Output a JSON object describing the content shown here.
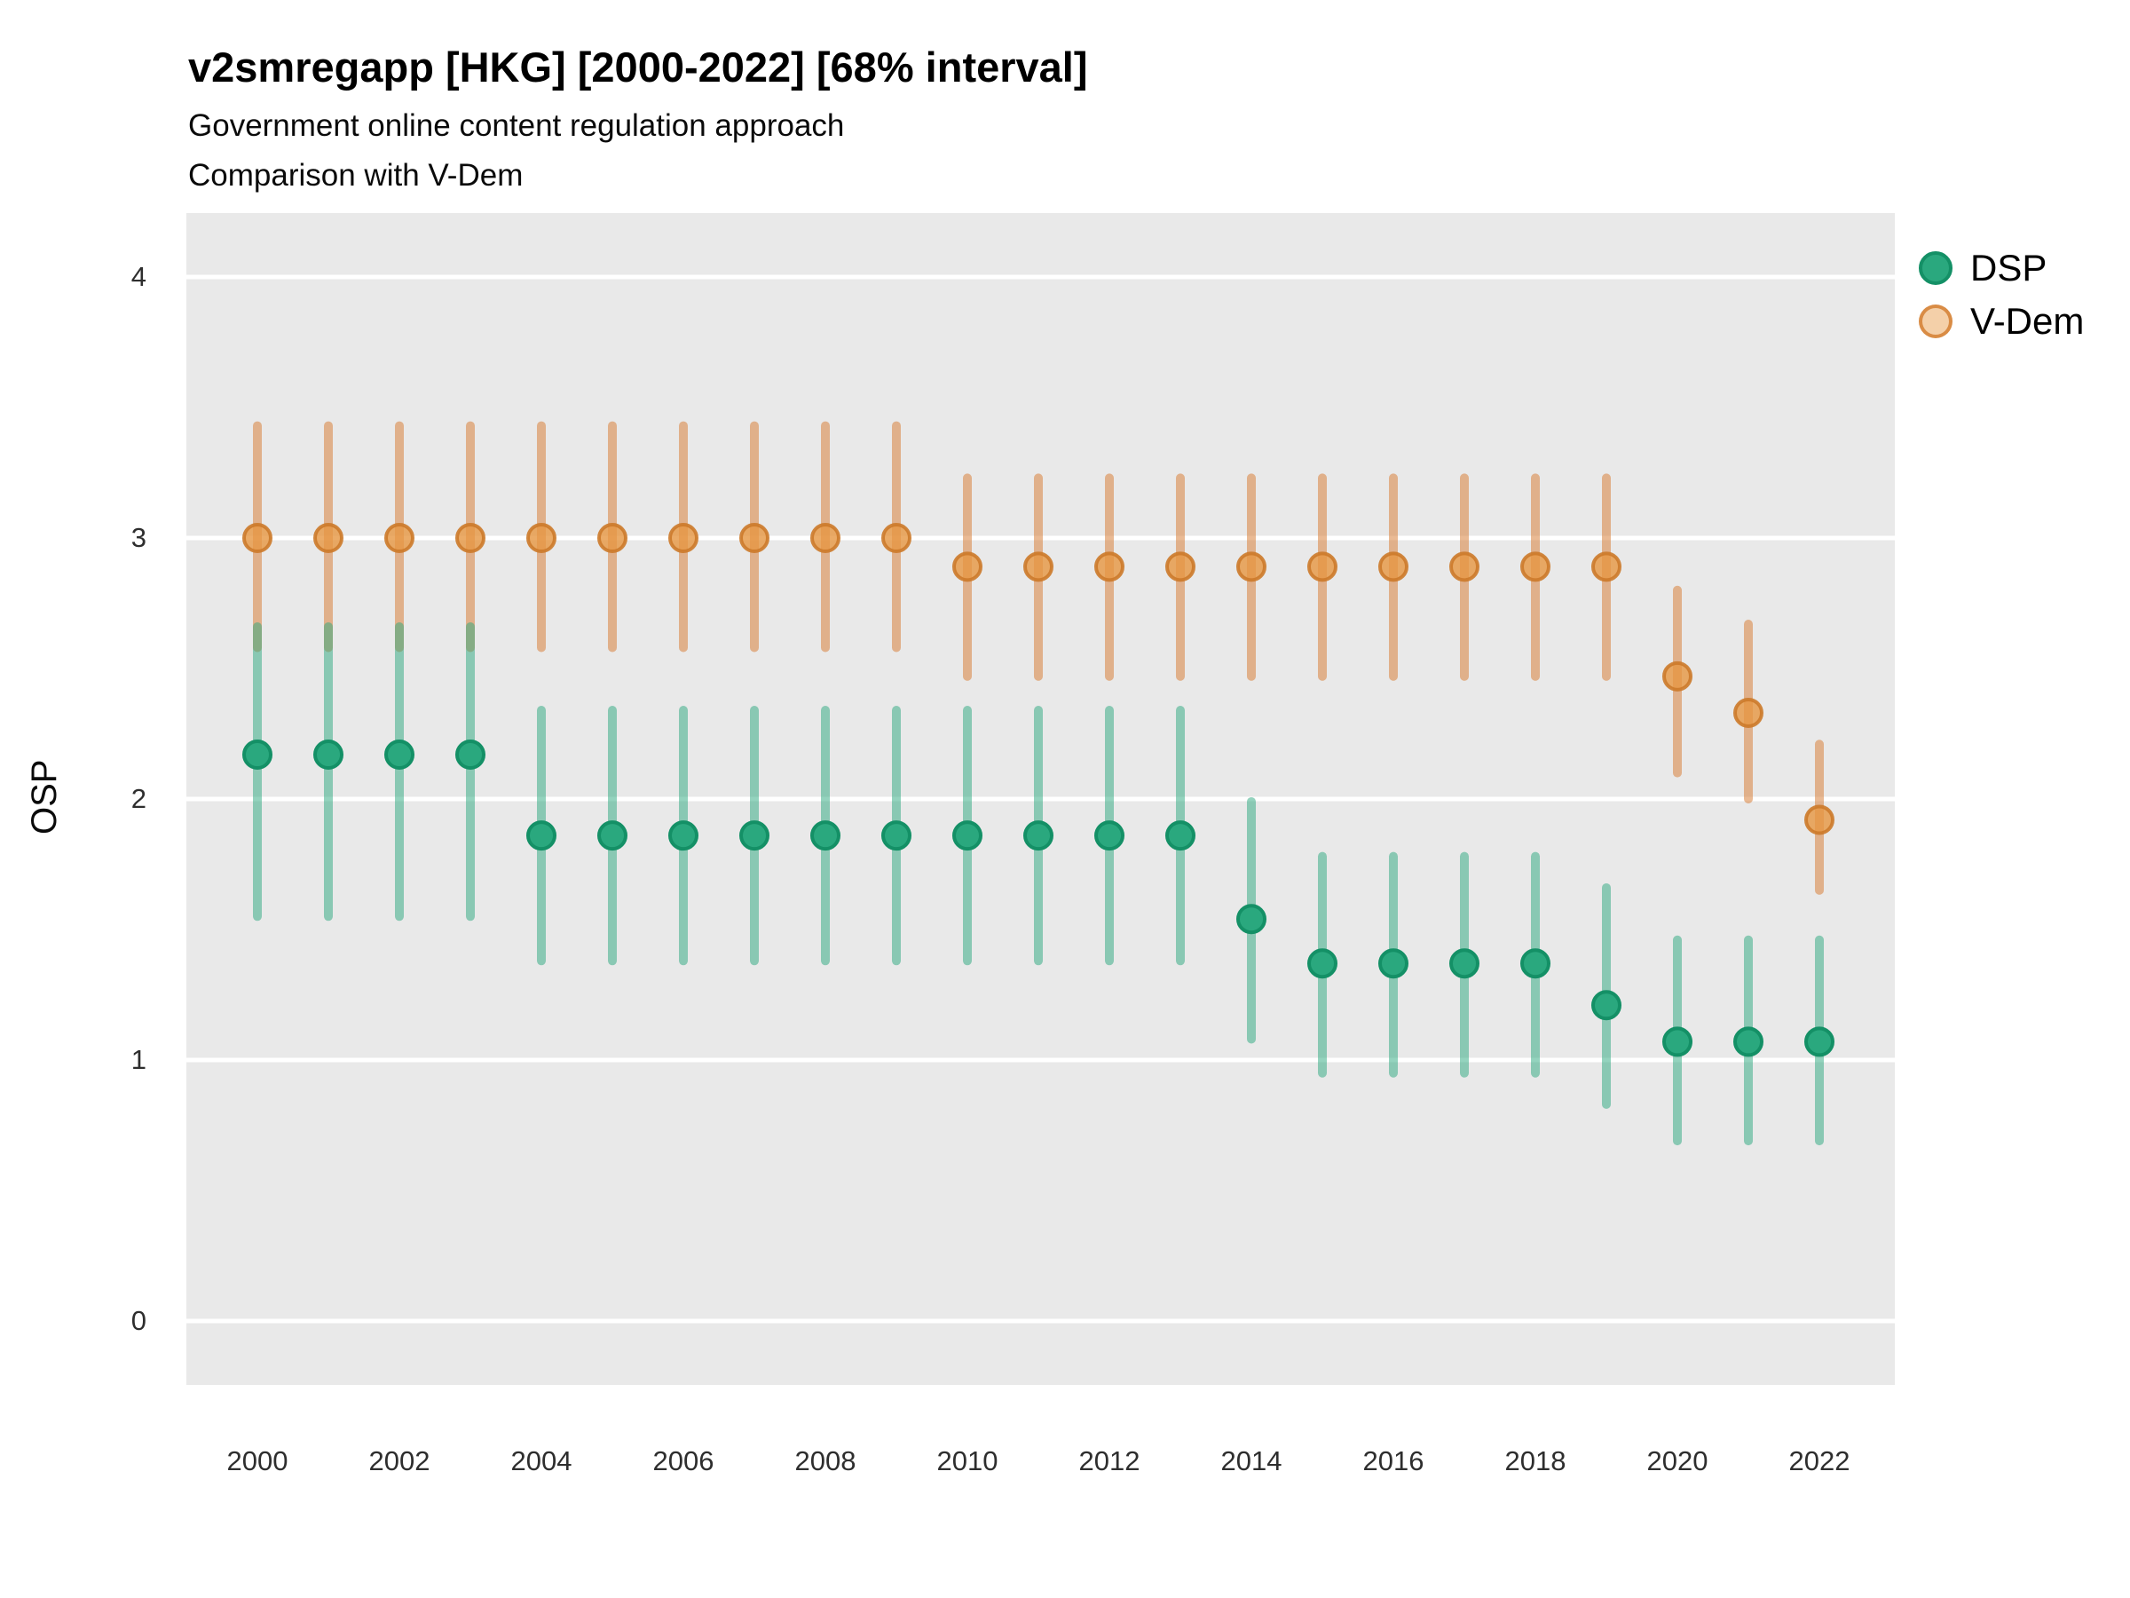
{
  "header": {
    "title": "v2smregapp [HKG] [2000-2022] [68% interval]",
    "subtitle1": "Government online content regulation approach",
    "subtitle2": "Comparison with V-Dem"
  },
  "axes": {
    "y_label": "OSP",
    "y_ticks": [
      0,
      1,
      2,
      3,
      4
    ],
    "x_ticks": [
      2000,
      2002,
      2004,
      2006,
      2008,
      2010,
      2012,
      2014,
      2016,
      2018,
      2020,
      2022
    ]
  },
  "legend": {
    "items": [
      {
        "label": "DSP"
      },
      {
        "label": "V-Dem"
      }
    ]
  },
  "colors": {
    "panel_background": "#e9e9e9",
    "gridline": "#ffffff",
    "dsp_point_fill": "#2aa87e",
    "dsp_point_stroke": "#149066",
    "dsp_interval_line": "rgba(42,168,126,0.5)",
    "vdem_point_fill": "rgba(230,150,65,0.8)",
    "vdem_point_stroke": "rgba(204,122,42,0.9)",
    "vdem_interval_line": "rgba(217,130,60,0.55)"
  },
  "chart_data": {
    "type": "pointrange",
    "title": "v2smregapp [HKG] [2000-2022] [68% interval]",
    "subtitle": "Government online content regulation approach — Comparison with V-Dem",
    "xlabel": "",
    "ylabel": "OSP",
    "interval": "68%",
    "ylim": [
      -0.24,
      4.24
    ],
    "grid": "major-horizontal",
    "legend_position": "right",
    "x": [
      2000,
      2001,
      2002,
      2003,
      2004,
      2005,
      2006,
      2007,
      2008,
      2009,
      2010,
      2011,
      2012,
      2013,
      2014,
      2015,
      2016,
      2017,
      2018,
      2019,
      2020,
      2021,
      2022
    ],
    "series": [
      {
        "name": "DSP",
        "values": [
          2.17,
          2.17,
          2.17,
          2.17,
          1.86,
          1.86,
          1.86,
          1.86,
          1.86,
          1.86,
          1.86,
          1.86,
          1.86,
          1.86,
          1.54,
          1.37,
          1.37,
          1.37,
          1.37,
          1.21,
          1.07,
          1.07,
          1.07
        ],
        "lower": [
          1.55,
          1.55,
          1.55,
          1.55,
          1.38,
          1.38,
          1.38,
          1.38,
          1.38,
          1.38,
          1.38,
          1.38,
          1.38,
          1.38,
          1.08,
          0.95,
          0.95,
          0.95,
          0.95,
          0.83,
          0.69,
          0.69,
          0.69
        ],
        "upper": [
          2.66,
          2.66,
          2.66,
          2.66,
          2.34,
          2.34,
          2.34,
          2.34,
          2.34,
          2.34,
          2.34,
          2.34,
          2.34,
          2.34,
          1.99,
          1.78,
          1.78,
          1.78,
          1.78,
          1.66,
          1.46,
          1.46,
          1.46
        ],
        "style": {
          "fill": "#2aa87e",
          "stroke": "#149066",
          "line": "rgba(42,168,126,0.5)"
        }
      },
      {
        "name": "V-Dem",
        "values": [
          3.0,
          3.0,
          3.0,
          3.0,
          3.0,
          3.0,
          3.0,
          3.0,
          3.0,
          3.0,
          2.89,
          2.89,
          2.89,
          2.89,
          2.89,
          2.89,
          2.89,
          2.89,
          2.89,
          2.89,
          2.47,
          2.33,
          1.92
        ],
        "lower": [
          2.58,
          2.58,
          2.58,
          2.58,
          2.58,
          2.58,
          2.58,
          2.58,
          2.58,
          2.58,
          2.47,
          2.47,
          2.47,
          2.47,
          2.47,
          2.47,
          2.47,
          2.47,
          2.47,
          2.47,
          2.1,
          2.0,
          1.65
        ],
        "upper": [
          3.43,
          3.43,
          3.43,
          3.43,
          3.43,
          3.43,
          3.43,
          3.43,
          3.43,
          3.43,
          3.23,
          3.23,
          3.23,
          3.23,
          3.23,
          3.23,
          3.23,
          3.23,
          3.23,
          3.23,
          2.8,
          2.67,
          2.21
        ],
        "style": {
          "fill": "rgba(230,150,65,0.8)",
          "stroke": "rgba(204,122,42,0.9)",
          "line": "rgba(217,130,60,0.55)"
        }
      }
    ]
  }
}
